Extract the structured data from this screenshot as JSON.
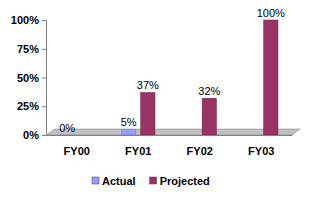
{
  "chart_data": {
    "type": "bar",
    "categories": [
      "FY00",
      "FY01",
      "FY02",
      "FY03"
    ],
    "series": [
      {
        "name": "Actual",
        "color": "#9999ff",
        "values": [
          0,
          5,
          null,
          null
        ],
        "value_labels": [
          "0%",
          "5%",
          null,
          null
        ]
      },
      {
        "name": "Projected",
        "color": "#993366",
        "values": [
          null,
          37,
          32,
          100
        ],
        "value_labels": [
          null,
          "37%",
          "32%",
          "100%"
        ]
      }
    ],
    "ylim": [
      0,
      100
    ],
    "yticks": [
      {
        "value": 0,
        "label": "0%"
      },
      {
        "value": 25,
        "label": "25%"
      },
      {
        "value": 50,
        "label": "50%"
      },
      {
        "value": 75,
        "label": "75%"
      },
      {
        "value": 100,
        "label": "100%"
      }
    ],
    "data_labels": true,
    "legend": "bottom"
  }
}
